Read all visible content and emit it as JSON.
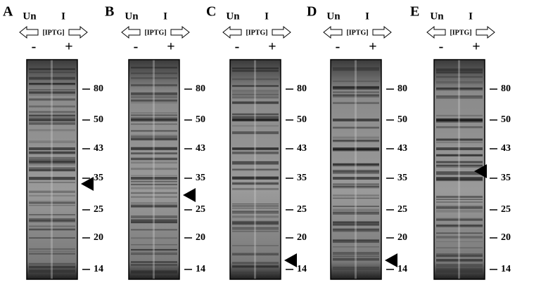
{
  "panels": [
    {
      "label": "A",
      "lanes": [
        "Un",
        "I"
      ],
      "treatment": "[IPTG]",
      "signs": [
        "-",
        "+"
      ],
      "markers": [
        "80",
        "50",
        "43",
        "35",
        "25",
        "20",
        "14"
      ]
    },
    {
      "label": "B",
      "lanes": [
        "Un",
        "I"
      ],
      "treatment": "[IPTG]",
      "signs": [
        "-",
        "+"
      ],
      "markers": [
        "80",
        "50",
        "43",
        "35",
        "25",
        "20",
        "14"
      ]
    },
    {
      "label": "C",
      "lanes": [
        "Un",
        "I"
      ],
      "treatment": "[IPTG]",
      "signs": [
        "-",
        "+"
      ],
      "markers": [
        "80",
        "50",
        "43",
        "35",
        "25",
        "20",
        "14"
      ]
    },
    {
      "label": "D",
      "lanes": [
        "Un",
        "I"
      ],
      "treatment": "[IPTG]",
      "signs": [
        "-",
        "+"
      ],
      "markers": [
        "80",
        "50",
        "43",
        "35",
        "25",
        "20",
        "14"
      ]
    },
    {
      "label": "E",
      "lanes": [
        "Un",
        "I"
      ],
      "treatment": "[IPTG]",
      "signs": [
        "-",
        "+"
      ],
      "markers": [
        "80",
        "50",
        "43",
        "35",
        "25",
        "20",
        "14"
      ]
    }
  ]
}
